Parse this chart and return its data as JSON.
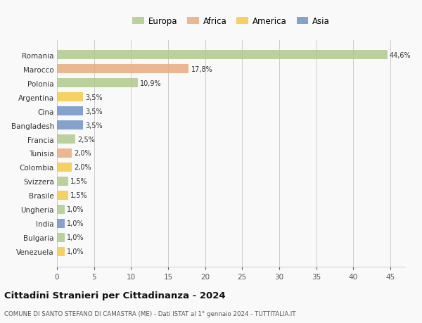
{
  "countries": [
    "Romania",
    "Marocco",
    "Polonia",
    "Argentina",
    "Cina",
    "Bangladesh",
    "Francia",
    "Tunisia",
    "Colombia",
    "Svizzera",
    "Brasile",
    "Ungheria",
    "India",
    "Bulgaria",
    "Venezuela"
  ],
  "values": [
    44.6,
    17.8,
    10.9,
    3.5,
    3.5,
    3.5,
    2.5,
    2.0,
    2.0,
    1.5,
    1.5,
    1.0,
    1.0,
    1.0,
    1.0
  ],
  "labels": [
    "44,6%",
    "17,8%",
    "10,9%",
    "3,5%",
    "3,5%",
    "3,5%",
    "2,5%",
    "2,0%",
    "2,0%",
    "1,5%",
    "1,5%",
    "1,0%",
    "1,0%",
    "1,0%",
    "1,0%"
  ],
  "colors": [
    "#adc889",
    "#e8a87c",
    "#adc889",
    "#f5c842",
    "#6a8fc2",
    "#6a8fc2",
    "#adc889",
    "#e8a87c",
    "#f5c842",
    "#adc889",
    "#f5c842",
    "#adc889",
    "#6a8fc2",
    "#adc889",
    "#f5c842"
  ],
  "legend_labels": [
    "Europa",
    "Africa",
    "America",
    "Asia"
  ],
  "legend_colors": [
    "#adc889",
    "#e8a87c",
    "#f5c842",
    "#6a8fc2"
  ],
  "title": "Cittadini Stranieri per Cittadinanza - 2024",
  "subtitle": "COMUNE DI SANTO STEFANO DI CAMASTRA (ME) - Dati ISTAT al 1° gennaio 2024 - TUTTITALIA.IT",
  "xlim": [
    0,
    47
  ],
  "xticks": [
    0,
    5,
    10,
    15,
    20,
    25,
    30,
    35,
    40,
    45
  ],
  "background_color": "#f9f9f9",
  "grid_color": "#cccccc",
  "bar_height": 0.65
}
